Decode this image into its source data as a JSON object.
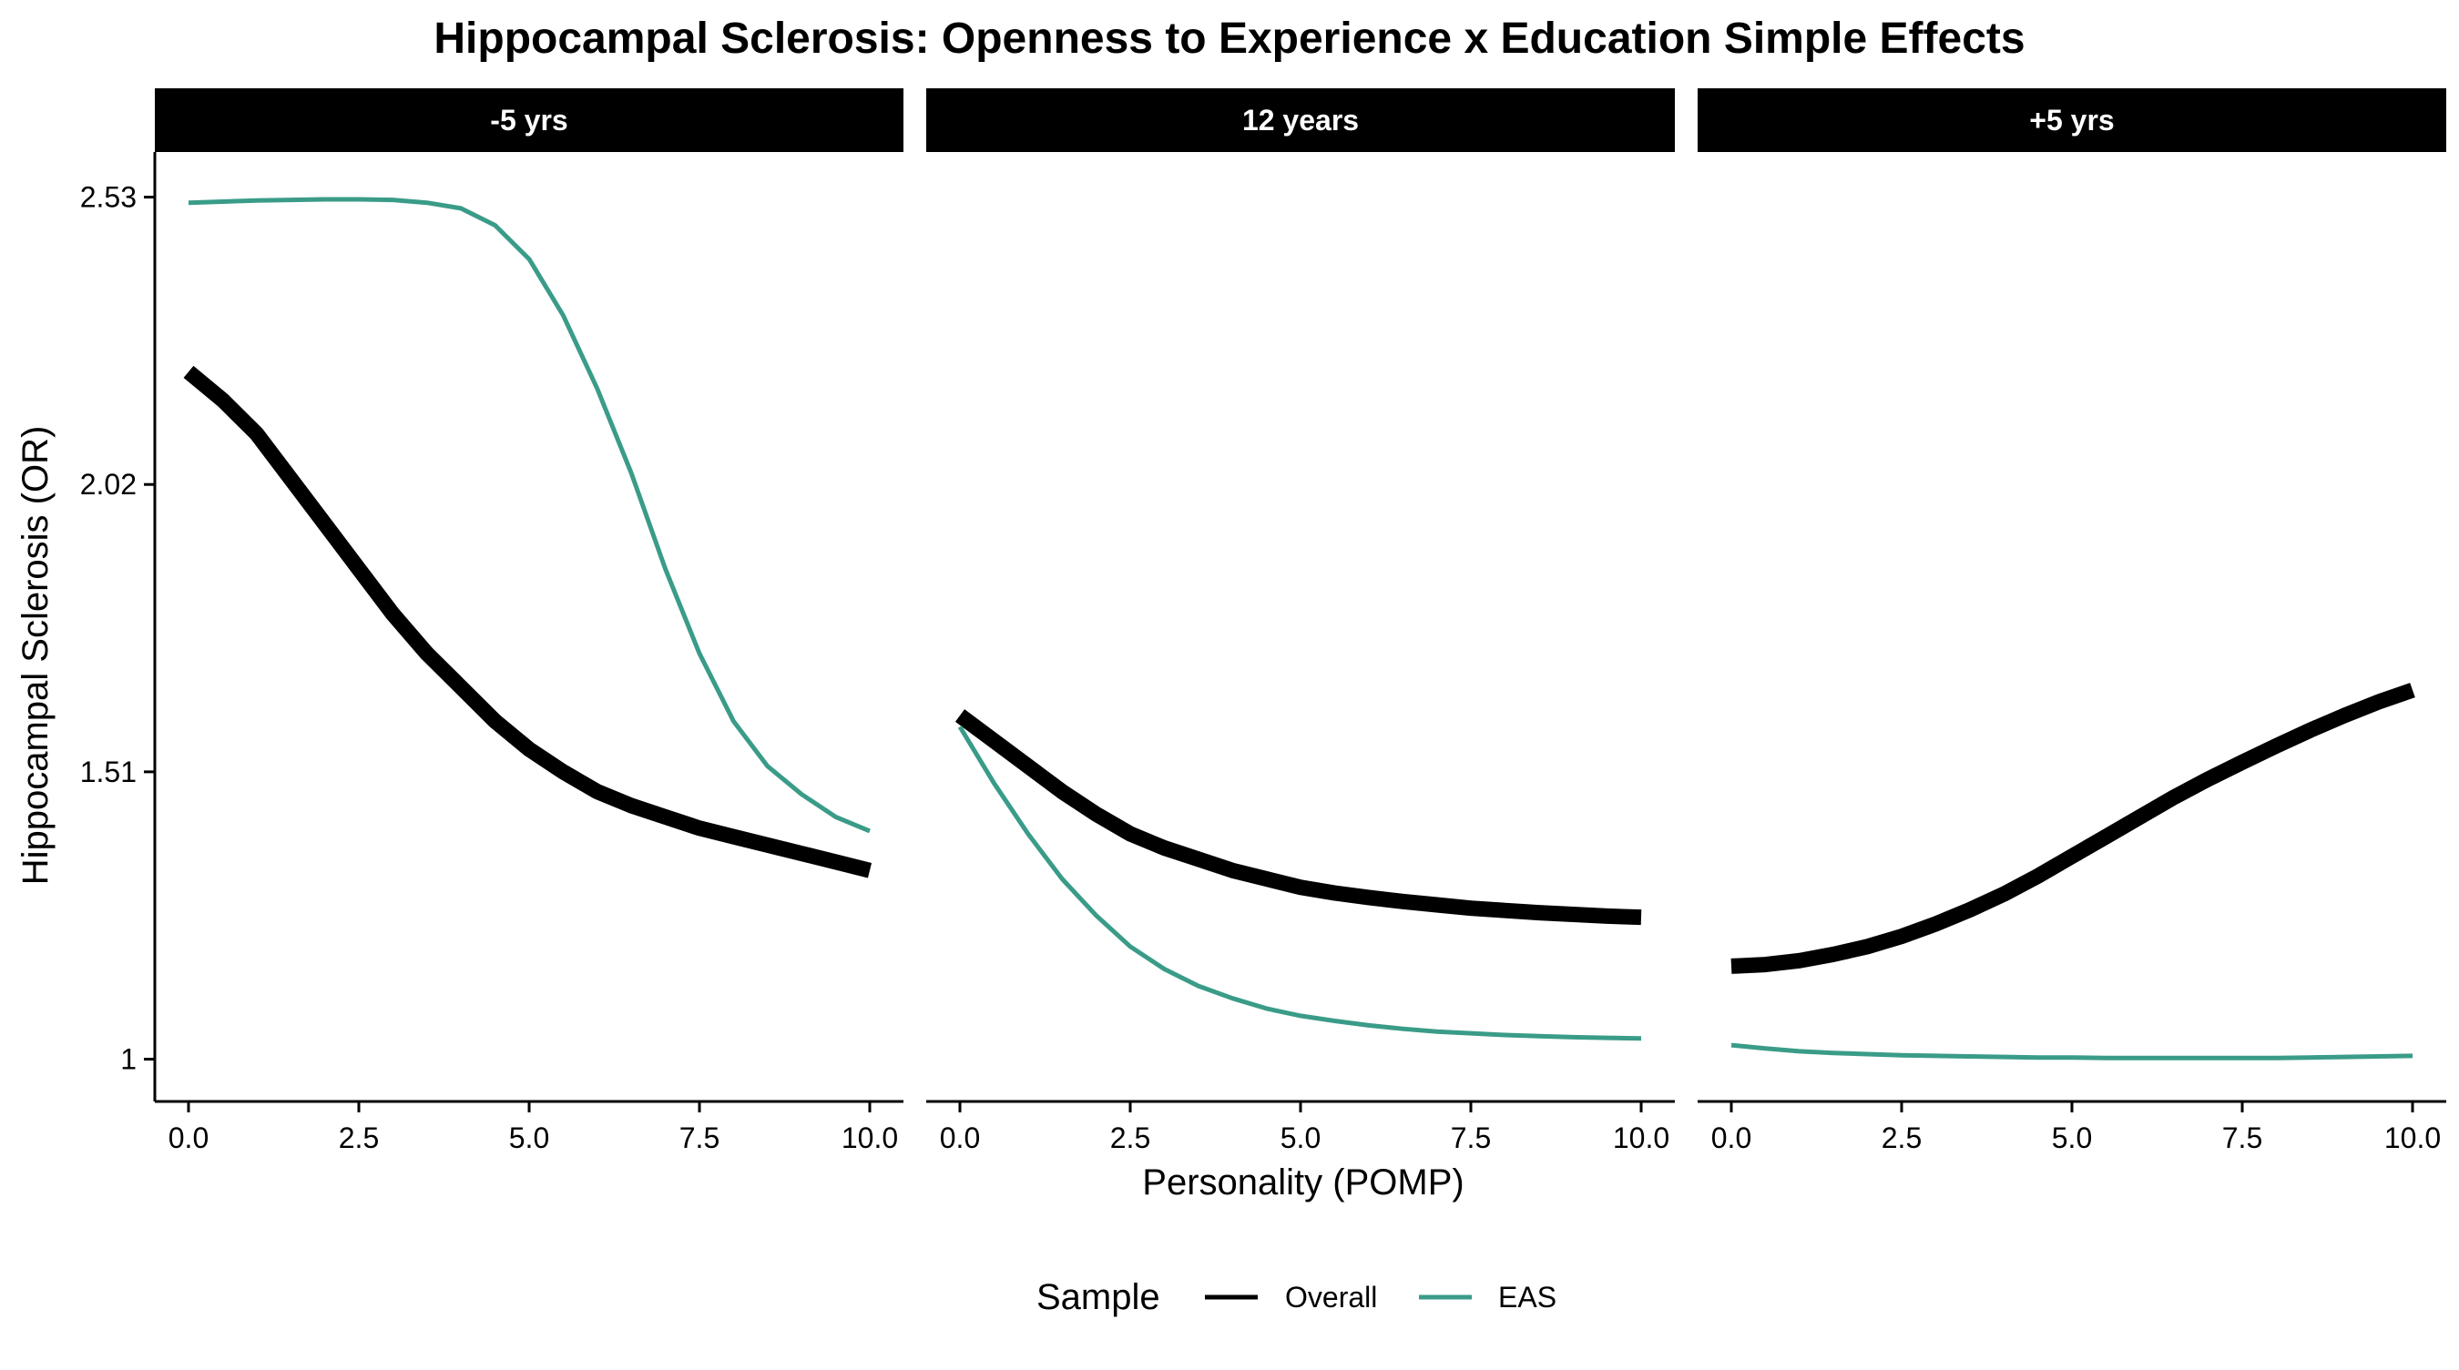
{
  "chart_data": {
    "type": "line",
    "title": "Hippocampal Sclerosis: Openness to Experience x Education Simple Effects",
    "xlabel": "Personality (POMP)",
    "ylabel": "Hippocampal Sclerosis (OR)",
    "xlim": [
      0,
      10
    ],
    "ylim": [
      0.925,
      2.61
    ],
    "x_ticks": [
      0,
      2.5,
      5,
      7.5,
      10
    ],
    "x_tick_labels": [
      "0.0",
      "2.5",
      "5.0",
      "7.5",
      "10.0"
    ],
    "y_ticks": [
      1,
      1.51,
      2.02,
      2.53
    ],
    "y_tick_labels": [
      "1",
      "1.51",
      "2.02",
      "2.53"
    ],
    "grid": false,
    "legend": {
      "title": "Sample",
      "position": "bottom",
      "entries": [
        {
          "label": "Overall",
          "color": "#000000"
        },
        {
          "label": "EAS",
          "color": "#3a9c88"
        }
      ]
    },
    "x": [
      0,
      0.5,
      1,
      1.5,
      2,
      2.5,
      3,
      3.5,
      4,
      4.5,
      5,
      5.5,
      6,
      6.5,
      7,
      7.5,
      8,
      8.5,
      9,
      9.5,
      10
    ],
    "panels": [
      {
        "label": "-5 yrs",
        "series": [
          {
            "name": "Overall",
            "values": [
              2.22,
              2.17,
              2.11,
              2.03,
              1.95,
              1.87,
              1.79,
              1.72,
              1.66,
              1.6,
              1.55,
              1.51,
              1.475,
              1.45,
              1.43,
              1.41,
              1.395,
              1.38,
              1.365,
              1.35,
              1.335
            ]
          },
          {
            "name": "EAS",
            "values": [
              2.52,
              2.522,
              2.524,
              2.525,
              2.526,
              2.526,
              2.525,
              2.52,
              2.51,
              2.48,
              2.42,
              2.32,
              2.19,
              2.04,
              1.87,
              1.72,
              1.6,
              1.52,
              1.47,
              1.43,
              1.405
            ]
          }
        ]
      },
      {
        "label": "12 years",
        "series": [
          {
            "name": "Overall",
            "values": [
              1.61,
              1.565,
              1.52,
              1.475,
              1.435,
              1.4,
              1.375,
              1.355,
              1.335,
              1.32,
              1.305,
              1.295,
              1.287,
              1.28,
              1.274,
              1.268,
              1.264,
              1.26,
              1.257,
              1.254,
              1.252
            ]
          },
          {
            "name": "EAS",
            "values": [
              1.59,
              1.49,
              1.4,
              1.32,
              1.255,
              1.2,
              1.16,
              1.13,
              1.108,
              1.09,
              1.077,
              1.068,
              1.06,
              1.054,
              1.049,
              1.046,
              1.043,
              1.041,
              1.039,
              1.038,
              1.037
            ]
          }
        ]
      },
      {
        "label": "+5 yrs",
        "series": [
          {
            "name": "Overall",
            "values": [
              1.165,
              1.168,
              1.175,
              1.186,
              1.2,
              1.218,
              1.24,
              1.265,
              1.293,
              1.325,
              1.36,
              1.395,
              1.43,
              1.465,
              1.497,
              1.527,
              1.556,
              1.584,
              1.61,
              1.634,
              1.655
            ]
          },
          {
            "name": "EAS",
            "values": [
              1.025,
              1.019,
              1.014,
              1.011,
              1.009,
              1.007,
              1.006,
              1.005,
              1.004,
              1.003,
              1.003,
              1.002,
              1.002,
              1.002,
              1.002,
              1.002,
              1.002,
              1.003,
              1.004,
              1.005,
              1.006
            ]
          }
        ]
      }
    ]
  }
}
